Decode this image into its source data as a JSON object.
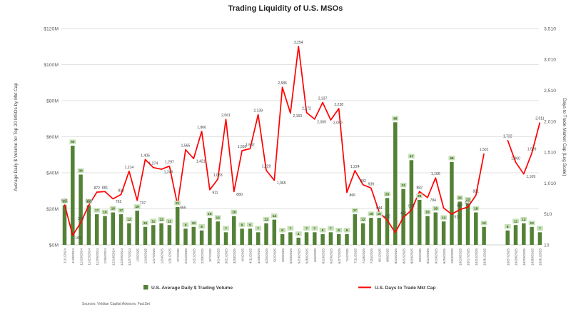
{
  "title": "Trading Liquidity of U.S. MSOs",
  "source_note": "Sources: Viridian Capital Advisors, FactSet",
  "left_axis": {
    "title": "Average Daily $ Volume for Top 20 MSOs by Mkt Cap",
    "ticks": [
      "$0M",
      "$20M",
      "$40M",
      "$60M",
      "$80M",
      "$100M",
      "$120M"
    ],
    "min": 0,
    "max": 120
  },
  "right_axis": {
    "title": "Days to Trade Market Cap (Log Scale)",
    "ticks": [
      "10",
      "510",
      "1,010",
      "1,510",
      "2,010",
      "2,510",
      "3,010",
      "3,510"
    ],
    "min": 10,
    "max": 3510
  },
  "colors": {
    "bar": "#538135",
    "bar_label_bg": "#C5E0B4",
    "bar_label_text": "#385723",
    "line": "#FF0000",
    "line_label": "#404040",
    "grid": "#D9D9D9",
    "axis_line": "#BFBFBF",
    "tick_text": "#595959",
    "title_text": "#262626"
  },
  "chart_data": {
    "type": "combo (bar + line, two axes)",
    "categories": [
      "11/1/2024",
      "11/8/2024",
      "11/15/2024",
      "11/22/2024",
      "11/29/2024",
      "12/6/2024",
      "12/13/2024",
      "12/20/2024",
      "12/27/2024",
      "1/3/2025",
      "1/10/2025",
      "1/17/2025",
      "1/24/2025",
      "1/31/2025",
      "2/7/2025",
      "2/14/2025",
      "2/21/2025",
      "2/28/2025",
      "3/7/2025",
      "3/14/2025",
      "3/21/2025",
      "3/28/2025",
      "4/4/2025",
      "4/11/2025",
      "4/18/2025",
      "4/25/2025",
      "5/2/2025",
      "5/9/2025",
      "5/16/2025",
      "5/23/2025",
      "5/30/2025",
      "6/6/2025",
      "6/13/2025",
      "6/20/2025",
      "6/27/2025",
      "7/4/2025",
      "7/11/2025",
      "7/18/2025",
      "7/25/2025",
      "8/1/2025",
      "8/8/2025",
      "8/15/2025",
      "8/22/2025",
      "8/29/2025",
      "9/5/2025",
      "9/12/2025",
      "9/19/2025",
      "9/26/2025",
      "10/3/2025",
      "10/10/2025",
      "10/17/2025",
      "10/24/2025",
      "10/31/2025",
      "10/27/2025",
      "10/28/2025",
      "10/29/2025",
      "10/30/2025",
      "10/31/2025"
    ],
    "weekly_count": 53,
    "daily_count": 5,
    "gap_after_index": 52,
    "series": [
      {
        "name": "U.S. Average Daily $ Trading Volume",
        "type": "bar",
        "axis": "left",
        "unit": "$M",
        "values": [
          22,
          55,
          39,
          22,
          17,
          16,
          18,
          17,
          12,
          19,
          10,
          11,
          12,
          11,
          21,
          9,
          10,
          8,
          15,
          13,
          7,
          16,
          9,
          9,
          7,
          12,
          14,
          6,
          7,
          4,
          7,
          7,
          6,
          7,
          6,
          6,
          17,
          12,
          15,
          15,
          26,
          68,
          31,
          47,
          25,
          16,
          18,
          13,
          46,
          24,
          23,
          18,
          10,
          8,
          11,
          12,
          10,
          7
        ]
      },
      {
        "name": "U.S. Days to Trade Mkt Cap",
        "type": "line",
        "axis": "right",
        "unit": "days",
        "values": [
          671,
          165,
          374,
          659,
          872,
          881,
          762,
          834,
          1214,
          737,
          1405,
          1274,
          1246,
          1297,
          665,
          1565,
          1421,
          1866,
          911,
          1083,
          2061,
          880,
          1550,
          1582,
          2139,
          1229,
          1065,
          2586,
          2163,
          3254,
          2172,
          2065,
          2337,
          2050,
          2238,
          866,
          1224,
          992,
          939,
          544,
          412,
          212,
          462,
          576,
          882,
          784,
          1106,
          612,
          512,
          587,
          627,
          821,
          1501,
          1722,
          1360,
          1169,
          1509,
          2011
        ],
        "point_labels": [
          "671",
          "165",
          "374",
          "659",
          "872",
          "881",
          "762",
          "834",
          "1,214",
          "737",
          "1,405",
          "1,274",
          "1,246",
          "1,297",
          "665",
          "1,565",
          "1,421",
          "1,866",
          "911",
          "1,083",
          "2,061",
          "880",
          "1,550",
          "1,582",
          "2,139",
          "1,229",
          "1,065",
          "2,586",
          "2,163",
          "3,254",
          "2,172",
          "2,065",
          "2,337",
          "2,050",
          "2,238",
          "866",
          "1,224",
          "992",
          "939",
          "544",
          "412",
          "",
          "462",
          "576",
          "882",
          "784",
          "1,106",
          "",
          "512",
          "587",
          "627",
          "821",
          "1,501",
          "1,722",
          "1,360",
          "1,169",
          "1,509",
          "2,011"
        ]
      }
    ],
    "legend_position": "bottom",
    "grid": "horizontal, $20M steps"
  }
}
